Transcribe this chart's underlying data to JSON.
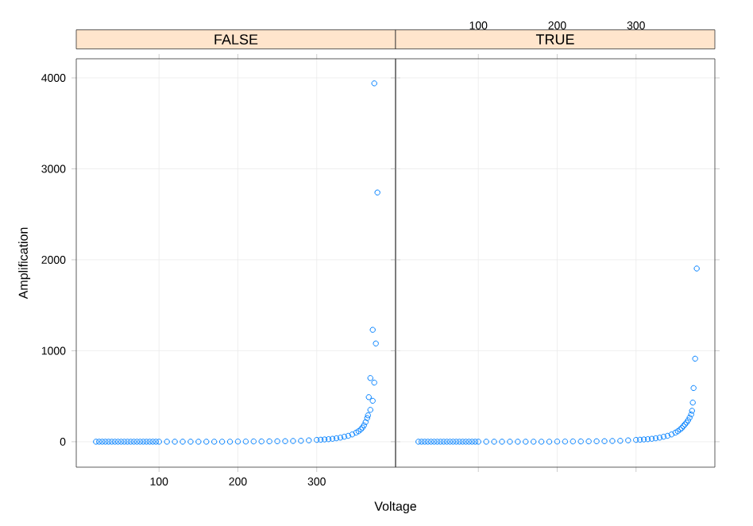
{
  "chart_data": [
    {
      "type": "scatter",
      "title": "FALSE",
      "xlabel": "Voltage",
      "ylabel": "Amplification",
      "color": "#0080ff",
      "marker": "circle",
      "grid": true,
      "xlim": [
        -5,
        400
      ],
      "ylim": [
        -280,
        4210
      ],
      "xticks": [
        100,
        200,
        300
      ],
      "yticks": [
        0,
        1000,
        2000,
        3000,
        4000
      ],
      "x": [
        20,
        24,
        28,
        32,
        36,
        40,
        44,
        48,
        52,
        56,
        60,
        64,
        68,
        72,
        76,
        80,
        84,
        88,
        92,
        96,
        100,
        110,
        120,
        130,
        140,
        150,
        160,
        170,
        180,
        190,
        200,
        210,
        220,
        230,
        240,
        250,
        260,
        270,
        280,
        290,
        300,
        305,
        310,
        315,
        320,
        325,
        330,
        335,
        340,
        345,
        350,
        353,
        356,
        358,
        360,
        362,
        364,
        365,
        366,
        368,
        368,
        371,
        371,
        373,
        373,
        375,
        377
      ],
      "values": [
        0,
        0,
        0,
        0,
        0,
        0,
        0,
        0,
        0,
        0,
        0,
        0,
        0,
        0,
        0,
        0,
        0,
        0,
        0,
        0,
        0,
        0,
        0,
        0,
        0,
        0,
        0,
        0,
        0,
        0,
        2,
        2,
        3,
        3,
        4,
        5,
        6,
        8,
        10,
        15,
        20,
        22,
        25,
        28,
        32,
        38,
        45,
        55,
        65,
        80,
        100,
        115,
        135,
        155,
        180,
        215,
        260,
        290,
        490,
        350,
        700,
        1230,
        450,
        650,
        3940,
        1080,
        2740
      ]
    },
    {
      "type": "scatter",
      "title": "TRUE",
      "color": "#0080ff",
      "marker": "circle",
      "grid": true,
      "xlim": [
        -5,
        400
      ],
      "ylim": [
        -280,
        4210
      ],
      "xticks": [
        100,
        200,
        300
      ],
      "yticks": [
        0,
        1000,
        2000,
        3000,
        4000
      ],
      "tick_labels": "x",
      "x": [
        24,
        28,
        32,
        36,
        40,
        44,
        48,
        52,
        56,
        60,
        64,
        68,
        72,
        76,
        80,
        84,
        88,
        92,
        96,
        100,
        110,
        120,
        130,
        140,
        150,
        160,
        170,
        180,
        190,
        200,
        210,
        220,
        230,
        240,
        250,
        260,
        270,
        280,
        290,
        300,
        305,
        310,
        315,
        320,
        325,
        330,
        335,
        340,
        345,
        350,
        353,
        356,
        358,
        360,
        362,
        364,
        366,
        368,
        370,
        371,
        372,
        373,
        375,
        377
      ],
      "values": [
        0,
        0,
        0,
        0,
        0,
        0,
        0,
        0,
        0,
        0,
        0,
        0,
        0,
        0,
        0,
        0,
        0,
        0,
        0,
        0,
        0,
        0,
        0,
        0,
        0,
        0,
        0,
        0,
        0,
        2,
        2,
        3,
        3,
        4,
        5,
        6,
        8,
        10,
        15,
        20,
        22,
        25,
        28,
        32,
        38,
        45,
        55,
        65,
        80,
        100,
        115,
        135,
        150,
        170,
        190,
        210,
        235,
        265,
        300,
        340,
        430,
        590,
        913,
        1904
      ]
    }
  ]
}
